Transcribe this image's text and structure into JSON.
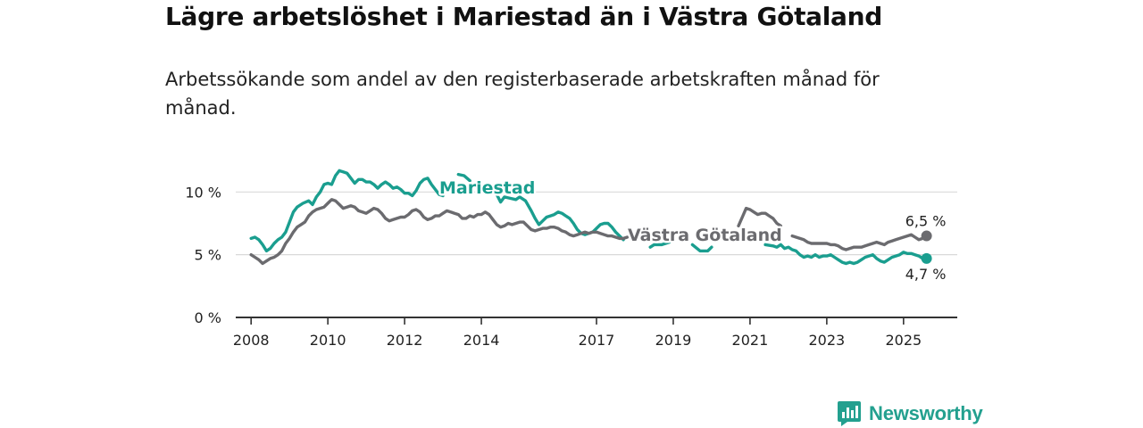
{
  "title": "Lägre arbetslöshet i Mariestad än i Västra Götaland",
  "subtitle": "Arbetssökande som andel av den registerbaserade arbetskraften månad för månad.",
  "brand": "Newsworthy",
  "colors": {
    "mariestad": "#1a9e8f",
    "vg": "#6b6b6f",
    "axis": "#333333",
    "grid": "#d9d9d9"
  },
  "chart_data": {
    "type": "line",
    "title": "Lägre arbetslöshet i Mariestad än i Västra Götaland",
    "xlabel": "",
    "ylabel": "",
    "xlim": [
      2007.6,
      2026.4
    ],
    "ylim": [
      0,
      11.8
    ],
    "x_ticks": [
      2008,
      2010,
      2012,
      2014,
      2017,
      2019,
      2021,
      2023,
      2025
    ],
    "y_ticks": [
      0,
      5,
      10
    ],
    "y_tick_labels": [
      "0 %",
      "5 %",
      "10 %"
    ],
    "grid": "horizontal",
    "series": [
      {
        "name": "Mariestad",
        "color": "#1a9e8f",
        "end_label": "4,7 %",
        "points": [
          [
            2008.0,
            6.3
          ],
          [
            2008.1,
            6.4
          ],
          [
            2008.2,
            6.2
          ],
          [
            2008.3,
            5.8
          ],
          [
            2008.4,
            5.3
          ],
          [
            2008.5,
            5.5
          ],
          [
            2008.6,
            5.9
          ],
          [
            2008.7,
            6.2
          ],
          [
            2008.8,
            6.4
          ],
          [
            2008.9,
            6.8
          ],
          [
            2009.0,
            7.6
          ],
          [
            2009.1,
            8.4
          ],
          [
            2009.2,
            8.8
          ],
          [
            2009.35,
            9.1
          ],
          [
            2009.5,
            9.3
          ],
          [
            2009.6,
            9.0
          ],
          [
            2009.7,
            9.6
          ],
          [
            2009.8,
            10.0
          ],
          [
            2009.9,
            10.6
          ],
          [
            2010.0,
            10.7
          ],
          [
            2010.1,
            10.6
          ],
          [
            2010.2,
            11.3
          ],
          [
            2010.3,
            11.7
          ],
          [
            2010.4,
            11.6
          ],
          [
            2010.5,
            11.5
          ],
          [
            2010.6,
            11.1
          ],
          [
            2010.7,
            10.7
          ],
          [
            2010.8,
            11.0
          ],
          [
            2010.9,
            11.0
          ],
          [
            2011.0,
            10.8
          ],
          [
            2011.1,
            10.8
          ],
          [
            2011.2,
            10.6
          ],
          [
            2011.3,
            10.3
          ],
          [
            2011.4,
            10.6
          ],
          [
            2011.5,
            10.8
          ],
          [
            2011.6,
            10.6
          ],
          [
            2011.7,
            10.3
          ],
          [
            2011.8,
            10.4
          ],
          [
            2011.9,
            10.2
          ],
          [
            2012.0,
            9.9
          ],
          [
            2012.1,
            9.9
          ],
          [
            2012.2,
            9.7
          ],
          [
            2012.3,
            10.1
          ],
          [
            2012.4,
            10.7
          ],
          [
            2012.5,
            11.0
          ],
          [
            2012.6,
            11.1
          ],
          [
            2012.7,
            10.6
          ],
          [
            2012.8,
            10.2
          ],
          [
            2012.9,
            9.8
          ],
          [
            2013.0,
            9.7
          ],
          [
            2013.1,
            null
          ],
          [
            2013.4,
            11.4
          ],
          [
            2013.55,
            11.3
          ],
          [
            2013.7,
            10.9
          ],
          [
            2013.8,
            null
          ],
          [
            2014.0,
            null
          ],
          [
            2014.4,
            9.8
          ],
          [
            2014.5,
            9.2
          ],
          [
            2014.6,
            9.6
          ],
          [
            2014.75,
            9.5
          ],
          [
            2014.9,
            9.4
          ],
          [
            2015.0,
            9.6
          ],
          [
            2015.15,
            9.3
          ],
          [
            2015.3,
            8.5
          ],
          [
            2015.4,
            7.9
          ],
          [
            2015.5,
            7.4
          ],
          [
            2015.6,
            7.7
          ],
          [
            2015.7,
            8.0
          ],
          [
            2015.8,
            8.1
          ],
          [
            2015.9,
            8.2
          ],
          [
            2016.0,
            8.4
          ],
          [
            2016.1,
            8.3
          ],
          [
            2016.2,
            8.1
          ],
          [
            2016.3,
            7.9
          ],
          [
            2016.4,
            7.5
          ],
          [
            2016.5,
            7.0
          ],
          [
            2016.6,
            6.7
          ],
          [
            2016.7,
            6.6
          ],
          [
            2016.8,
            6.7
          ],
          [
            2016.9,
            6.8
          ],
          [
            2017.0,
            7.1
          ],
          [
            2017.1,
            7.4
          ],
          [
            2017.2,
            7.5
          ],
          [
            2017.3,
            7.5
          ],
          [
            2017.4,
            7.2
          ],
          [
            2017.5,
            6.8
          ],
          [
            2017.6,
            6.5
          ],
          [
            2017.7,
            6.2
          ],
          [
            2017.8,
            null
          ],
          [
            2018.4,
            5.6
          ],
          [
            2018.5,
            5.8
          ],
          [
            2018.7,
            5.8
          ],
          [
            2018.9,
            6.0
          ],
          [
            2019.0,
            null
          ],
          [
            2019.5,
            5.8
          ],
          [
            2019.7,
            5.3
          ],
          [
            2019.9,
            5.3
          ],
          [
            2020.0,
            5.6
          ],
          [
            2020.1,
            null
          ],
          [
            2021.4,
            5.8
          ],
          [
            2021.6,
            5.7
          ],
          [
            2021.7,
            5.6
          ],
          [
            2021.8,
            5.8
          ],
          [
            2021.9,
            5.5
          ],
          [
            2022.0,
            5.6
          ],
          [
            2022.1,
            5.4
          ],
          [
            2022.2,
            5.3
          ],
          [
            2022.3,
            5.0
          ],
          [
            2022.4,
            4.8
          ],
          [
            2022.5,
            4.9
          ],
          [
            2022.6,
            4.8
          ],
          [
            2022.7,
            5.0
          ],
          [
            2022.8,
            4.8
          ],
          [
            2022.9,
            4.9
          ],
          [
            2023.0,
            4.9
          ],
          [
            2023.1,
            5.0
          ],
          [
            2023.2,
            4.8
          ],
          [
            2023.3,
            4.6
          ],
          [
            2023.4,
            4.4
          ],
          [
            2023.5,
            4.3
          ],
          [
            2023.6,
            4.4
          ],
          [
            2023.7,
            4.3
          ],
          [
            2023.8,
            4.4
          ],
          [
            2023.9,
            4.6
          ],
          [
            2024.0,
            4.8
          ],
          [
            2024.1,
            4.9
          ],
          [
            2024.2,
            5.0
          ],
          [
            2024.3,
            4.7
          ],
          [
            2024.4,
            4.5
          ],
          [
            2024.5,
            4.4
          ],
          [
            2024.6,
            4.6
          ],
          [
            2024.7,
            4.8
          ],
          [
            2024.8,
            4.9
          ],
          [
            2024.9,
            5.0
          ],
          [
            2025.0,
            5.2
          ],
          [
            2025.1,
            5.1
          ],
          [
            2025.2,
            5.1
          ],
          [
            2025.3,
            5.0
          ],
          [
            2025.4,
            4.9
          ],
          [
            2025.5,
            4.7
          ],
          [
            2025.6,
            4.7
          ]
        ]
      },
      {
        "name": "Västra Götaland",
        "color": "#6b6b6f",
        "end_label": "6,5 %",
        "points": [
          [
            2008.0,
            5.0
          ],
          [
            2008.1,
            4.8
          ],
          [
            2008.2,
            4.6
          ],
          [
            2008.3,
            4.3
          ],
          [
            2008.4,
            4.5
          ],
          [
            2008.5,
            4.7
          ],
          [
            2008.6,
            4.8
          ],
          [
            2008.7,
            5.0
          ],
          [
            2008.8,
            5.3
          ],
          [
            2008.9,
            5.9
          ],
          [
            2009.0,
            6.3
          ],
          [
            2009.1,
            6.8
          ],
          [
            2009.2,
            7.2
          ],
          [
            2009.3,
            7.4
          ],
          [
            2009.4,
            7.6
          ],
          [
            2009.5,
            8.1
          ],
          [
            2009.6,
            8.4
          ],
          [
            2009.7,
            8.6
          ],
          [
            2009.8,
            8.7
          ],
          [
            2009.9,
            8.8
          ],
          [
            2010.0,
            9.1
          ],
          [
            2010.1,
            9.4
          ],
          [
            2010.2,
            9.3
          ],
          [
            2010.3,
            9.0
          ],
          [
            2010.4,
            8.7
          ],
          [
            2010.5,
            8.8
          ],
          [
            2010.6,
            8.9
          ],
          [
            2010.7,
            8.8
          ],
          [
            2010.8,
            8.5
          ],
          [
            2010.9,
            8.4
          ],
          [
            2011.0,
            8.3
          ],
          [
            2011.1,
            8.5
          ],
          [
            2011.2,
            8.7
          ],
          [
            2011.3,
            8.6
          ],
          [
            2011.4,
            8.3
          ],
          [
            2011.5,
            7.9
          ],
          [
            2011.6,
            7.7
          ],
          [
            2011.7,
            7.8
          ],
          [
            2011.8,
            7.9
          ],
          [
            2011.9,
            8.0
          ],
          [
            2012.0,
            8.0
          ],
          [
            2012.1,
            8.2
          ],
          [
            2012.2,
            8.5
          ],
          [
            2012.3,
            8.6
          ],
          [
            2012.4,
            8.4
          ],
          [
            2012.5,
            8.0
          ],
          [
            2012.6,
            7.8
          ],
          [
            2012.7,
            7.9
          ],
          [
            2012.8,
            8.1
          ],
          [
            2012.9,
            8.1
          ],
          [
            2013.0,
            8.3
          ],
          [
            2013.1,
            8.5
          ],
          [
            2013.2,
            8.4
          ],
          [
            2013.3,
            8.3
          ],
          [
            2013.4,
            8.2
          ],
          [
            2013.5,
            7.9
          ],
          [
            2013.6,
            7.9
          ],
          [
            2013.7,
            8.1
          ],
          [
            2013.8,
            8.0
          ],
          [
            2013.9,
            8.2
          ],
          [
            2014.0,
            8.2
          ],
          [
            2014.1,
            8.4
          ],
          [
            2014.2,
            8.2
          ],
          [
            2014.3,
            7.8
          ],
          [
            2014.4,
            7.4
          ],
          [
            2014.5,
            7.2
          ],
          [
            2014.6,
            7.3
          ],
          [
            2014.7,
            7.5
          ],
          [
            2014.8,
            7.4
          ],
          [
            2014.9,
            7.5
          ],
          [
            2015.0,
            7.6
          ],
          [
            2015.1,
            7.6
          ],
          [
            2015.2,
            7.3
          ],
          [
            2015.3,
            7.0
          ],
          [
            2015.4,
            6.9
          ],
          [
            2015.5,
            7.0
          ],
          [
            2015.6,
            7.1
          ],
          [
            2015.7,
            7.1
          ],
          [
            2015.8,
            7.2
          ],
          [
            2015.9,
            7.2
          ],
          [
            2016.0,
            7.1
          ],
          [
            2016.1,
            6.9
          ],
          [
            2016.2,
            6.8
          ],
          [
            2016.3,
            6.6
          ],
          [
            2016.4,
            6.5
          ],
          [
            2016.5,
            6.6
          ],
          [
            2016.6,
            6.7
          ],
          [
            2016.7,
            6.8
          ],
          [
            2016.8,
            6.7
          ],
          [
            2016.9,
            6.8
          ],
          [
            2017.0,
            6.8
          ],
          [
            2017.1,
            6.7
          ],
          [
            2017.2,
            6.6
          ],
          [
            2017.3,
            6.5
          ],
          [
            2017.4,
            6.5
          ],
          [
            2017.5,
            6.4
          ],
          [
            2017.6,
            6.3
          ],
          [
            2017.7,
            6.3
          ],
          [
            2017.8,
            6.4
          ],
          [
            2017.9,
            null
          ],
          [
            2020.7,
            7.3
          ],
          [
            2020.8,
            8.0
          ],
          [
            2020.9,
            8.7
          ],
          [
            2021.0,
            8.6
          ],
          [
            2021.1,
            8.4
          ],
          [
            2021.2,
            8.2
          ],
          [
            2021.3,
            8.3
          ],
          [
            2021.4,
            8.3
          ],
          [
            2021.5,
            8.1
          ],
          [
            2021.6,
            7.9
          ],
          [
            2021.7,
            7.5
          ],
          [
            2021.8,
            7.3
          ],
          [
            2021.9,
            null
          ],
          [
            2022.1,
            6.5
          ],
          [
            2022.2,
            6.4
          ],
          [
            2022.3,
            6.3
          ],
          [
            2022.4,
            6.2
          ],
          [
            2022.5,
            6.0
          ],
          [
            2022.6,
            5.9
          ],
          [
            2022.7,
            5.9
          ],
          [
            2022.8,
            5.9
          ],
          [
            2022.9,
            5.9
          ],
          [
            2023.0,
            5.9
          ],
          [
            2023.1,
            5.8
          ],
          [
            2023.2,
            5.8
          ],
          [
            2023.3,
            5.7
          ],
          [
            2023.4,
            5.5
          ],
          [
            2023.5,
            5.4
          ],
          [
            2023.6,
            5.5
          ],
          [
            2023.7,
            5.6
          ],
          [
            2023.8,
            5.6
          ],
          [
            2023.9,
            5.6
          ],
          [
            2024.0,
            5.7
          ],
          [
            2024.1,
            5.8
          ],
          [
            2024.2,
            5.9
          ],
          [
            2024.3,
            6.0
          ],
          [
            2024.4,
            5.9
          ],
          [
            2024.5,
            5.8
          ],
          [
            2024.6,
            6.0
          ],
          [
            2024.7,
            6.1
          ],
          [
            2024.8,
            6.2
          ],
          [
            2024.9,
            6.3
          ],
          [
            2025.0,
            6.4
          ],
          [
            2025.1,
            6.5
          ],
          [
            2025.2,
            6.6
          ],
          [
            2025.3,
            6.4
          ],
          [
            2025.4,
            6.2
          ],
          [
            2025.5,
            6.3
          ],
          [
            2025.6,
            6.5
          ]
        ]
      }
    ]
  }
}
